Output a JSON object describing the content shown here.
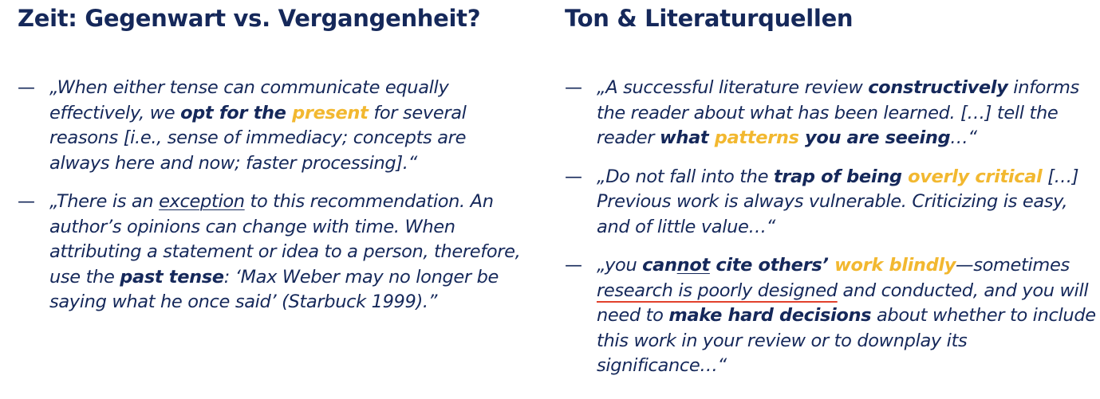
{
  "left": {
    "title": "Zeit: Gegenwart vs. Vergangenheit?",
    "items": [
      {
        "dash": "—",
        "segments": [
          {
            "t": "„When either tense can communicate equally effectively, we "
          },
          {
            "t": "opt for the ",
            "bold": true
          },
          {
            "t": "present",
            "bold": true,
            "accent": true
          },
          {
            "t": " for several reasons [i.e., sense of immediacy; concepts are always here and now; faster processing].“"
          }
        ]
      },
      {
        "dash": "—",
        "segments": [
          {
            "t": "„There is an "
          },
          {
            "t": "exception",
            "underline": true
          },
          {
            "t": " to this recommendation. An author’s opinions can change with time. When attributing a statement or idea to a person, therefore, use the "
          },
          {
            "t": "past tense",
            "bold": true
          },
          {
            "t": ": ‘Max Weber may no longer be saying what he once said’ (Starbuck 1999).”"
          }
        ]
      }
    ]
  },
  "right": {
    "title": "Ton & Literaturquellen",
    "items": [
      {
        "dash": "—",
        "segments": [
          {
            "t": "„A successful literature review "
          },
          {
            "t": "constructively",
            "bold": true
          },
          {
            "t": " informs the reader about what has been learned. […] tell the reader "
          },
          {
            "t": "what ",
            "bold": true
          },
          {
            "t": "patterns",
            "bold": true,
            "accent": true
          },
          {
            "t": " you are seeing",
            "bold": true
          },
          {
            "t": "…“"
          }
        ]
      },
      {
        "dash": "—",
        "segments": [
          {
            "t": "„Do not fall into the "
          },
          {
            "t": "trap of being ",
            "bold": true
          },
          {
            "t": "overly critical",
            "bold": true,
            "accent": true
          },
          {
            "t": " […] Previous work is always vulnerable. Criticizing is easy, and of little value…“"
          }
        ]
      },
      {
        "dash": "—",
        "segments": [
          {
            "t": "„you "
          },
          {
            "t": "can",
            "bold": true
          },
          {
            "t": "not",
            "bold": true,
            "underline": true
          },
          {
            "t": " cite others’ ",
            "bold": true
          },
          {
            "t": "work blindly",
            "bold": true,
            "accent": true
          },
          {
            "t": "—sometimes "
          },
          {
            "t": "research is poorly designed",
            "red_underline": true
          },
          {
            "t": " and conducted, and you will need to "
          },
          {
            "t": "make hard decisions",
            "bold": true
          },
          {
            "t": " about whether to include this work in your review or to downplay its significance…“"
          }
        ]
      }
    ]
  },
  "colors": {
    "text": "#15285a",
    "accent": "#f2b830",
    "underline_red": "#e2412c"
  }
}
